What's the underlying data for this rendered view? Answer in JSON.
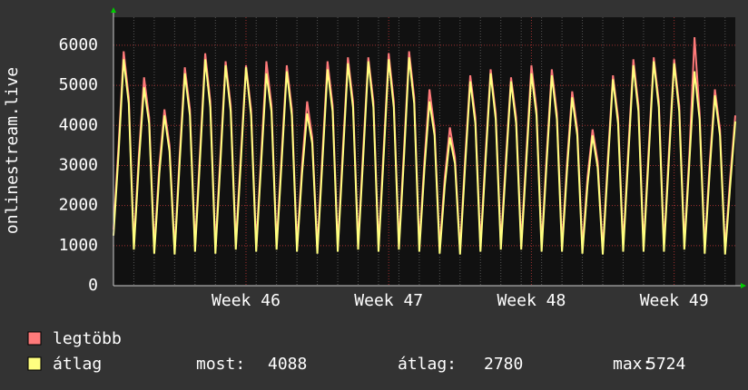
{
  "chart_data": {
    "type": "line",
    "y_label": "onlinestream.live",
    "categories": [
      null,
      null,
      null,
      null,
      null,
      null,
      null,
      null,
      null,
      null,
      null,
      null,
      null,
      null,
      null,
      null,
      null,
      null,
      null,
      null,
      null,
      null,
      null,
      null,
      null,
      null,
      "Week 46",
      null,
      null,
      null,
      null,
      null,
      null,
      null,
      null,
      null,
      null,
      null,
      null,
      null,
      null,
      null,
      null,
      null,
      null,
      null,
      null,
      null,
      null,
      null,
      null,
      null,
      null,
      null,
      "Week 47",
      null,
      null,
      null,
      null,
      null,
      null,
      null,
      null,
      null,
      null,
      null,
      null,
      null,
      null,
      null,
      null,
      null,
      null,
      null,
      null,
      null,
      null,
      null,
      null,
      null,
      null,
      null,
      "Week 48",
      null,
      null,
      null,
      null,
      null,
      null,
      null,
      null,
      null,
      null,
      null,
      null,
      null,
      null,
      null,
      null,
      null,
      null,
      null,
      null,
      null,
      null,
      null,
      null,
      null,
      null,
      null,
      "Week 49",
      null,
      null,
      null,
      null,
      null,
      null,
      null,
      null,
      null,
      null,
      null,
      null
    ],
    "series": [
      {
        "name": "legtöbb",
        "color": "#ff7a7a",
        "values": [
          1400,
          3500,
          5850,
          4700,
          1050,
          3300,
          5200,
          4200,
          950,
          3000,
          4400,
          3500,
          900,
          3300,
          5450,
          4400,
          1000,
          3400,
          5800,
          4600,
          950,
          3300,
          5600,
          4500,
          1050,
          3300,
          5500,
          4400,
          1000,
          3300,
          5600,
          4500,
          1050,
          3300,
          5500,
          4400,
          1000,
          3000,
          4600,
          3700,
          950,
          3300,
          5600,
          4500,
          1000,
          3400,
          5700,
          4600,
          1050,
          3400,
          5700,
          4600,
          1000,
          3400,
          5800,
          4600,
          1050,
          3400,
          5850,
          4700,
          1000,
          3100,
          4900,
          3900,
          950,
          2700,
          3950,
          3200,
          900,
          3200,
          5250,
          4200,
          1000,
          3300,
          5400,
          4300,
          1050,
          3200,
          5200,
          4200,
          1050,
          3300,
          5500,
          4400,
          1000,
          3300,
          5400,
          4300,
          1000,
          3100,
          4850,
          3900,
          950,
          2700,
          3900,
          3100,
          900,
          3200,
          5250,
          4200,
          1000,
          3400,
          5650,
          4500,
          1000,
          3400,
          5700,
          4600,
          1000,
          3400,
          5650,
          4500,
          1050,
          3300,
          6200,
          4300,
          950,
          3100,
          4900,
          3900,
          900,
          2700,
          4250
        ]
      },
      {
        "name": "átlag",
        "color": "#ffff80",
        "values": [
          1250,
          3300,
          5650,
          4550,
          900,
          3100,
          4950,
          4050,
          800,
          2800,
          4250,
          3350,
          780,
          3100,
          5300,
          4250,
          850,
          3200,
          5650,
          4450,
          800,
          3100,
          5500,
          4350,
          900,
          3100,
          5450,
          4250,
          850,
          3100,
          5300,
          4350,
          900,
          3100,
          5350,
          4250,
          850,
          2800,
          4300,
          3550,
          800,
          3100,
          5400,
          4350,
          850,
          3200,
          5550,
          4450,
          900,
          3200,
          5600,
          4450,
          850,
          3200,
          5650,
          4450,
          900,
          3200,
          5700,
          4550,
          850,
          2900,
          4600,
          3750,
          800,
          2500,
          3700,
          3050,
          780,
          3000,
          5100,
          4050,
          850,
          3100,
          5300,
          4150,
          900,
          3000,
          5100,
          4050,
          900,
          3100,
          5300,
          4250,
          850,
          3100,
          5250,
          4150,
          850,
          2900,
          4700,
          3750,
          800,
          2500,
          3750,
          2950,
          780,
          3000,
          5150,
          4050,
          850,
          3200,
          5500,
          4350,
          850,
          3200,
          5600,
          4450,
          850,
          3200,
          5550,
          4350,
          900,
          3100,
          5350,
          4150,
          800,
          2900,
          4750,
          3750,
          780,
          2500,
          4100
        ]
      }
    ],
    "ylim": [
      0,
      6700
    ],
    "yticks": [
      0,
      1000,
      2000,
      3000,
      4000,
      5000,
      6000
    ],
    "grid": true,
    "stats": [
      {
        "label": "most:",
        "value": 4088
      },
      {
        "label": "átlag:",
        "value": 2780
      },
      {
        "label": "max:",
        "value": 5724
      }
    ]
  }
}
